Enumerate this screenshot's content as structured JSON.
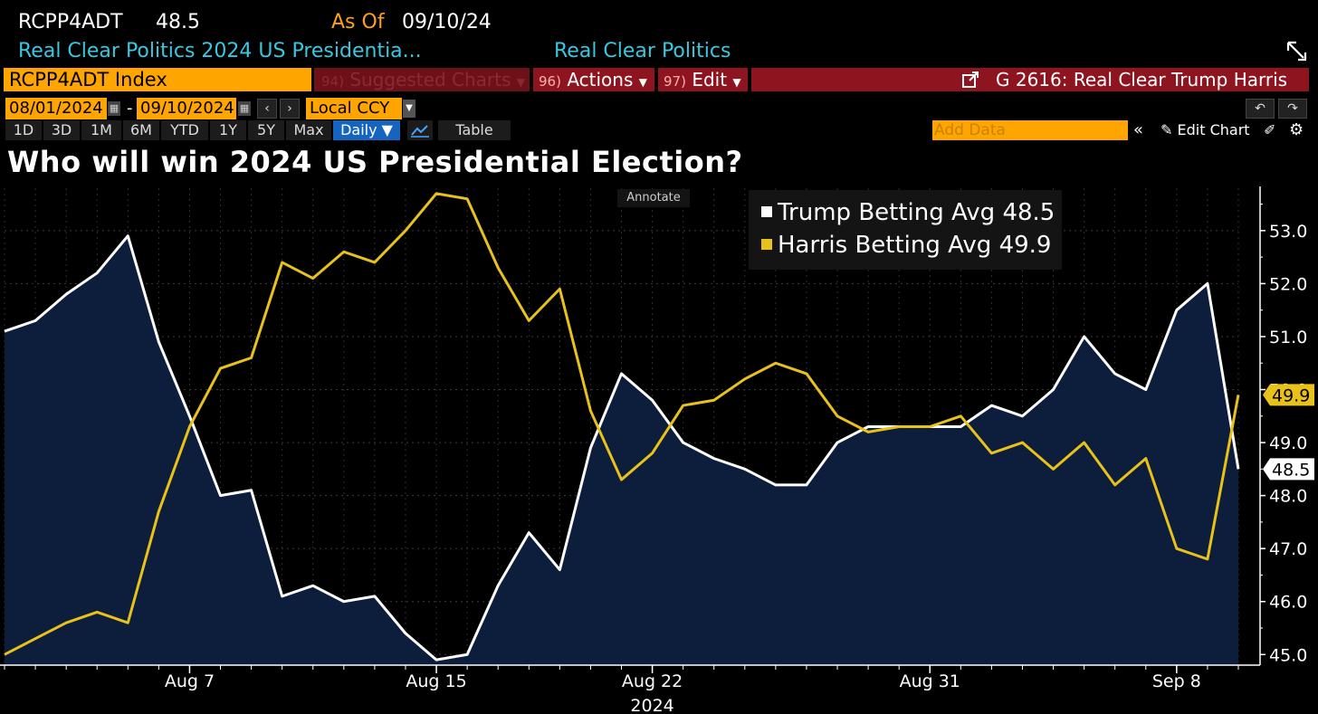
{
  "header": {
    "ticker": "RCPP4ADT",
    "ticker_value": "48.5",
    "as_of_label": "As Of",
    "as_of_date": "09/10/24",
    "subtitle": "Real Clear Politics 2024 US Presidentia...",
    "source": "Real Clear Politics"
  },
  "toolbar": {
    "index_name": "RCPP4ADT Index",
    "suggested_num": "94)",
    "suggested_label": "Suggested Charts",
    "actions_num": "96)",
    "actions_label": "Actions",
    "edit_num": "97)",
    "edit_label": "Edit",
    "chart_name": "G 2616: Real Clear Trump Harris"
  },
  "dates": {
    "start": "08/01/2024",
    "sep": "-",
    "end": "09/10/2024",
    "currency": "Local CCY"
  },
  "ranges": [
    "1D",
    "3D",
    "1M",
    "6M",
    "YTD",
    "1Y",
    "5Y",
    "Max"
  ],
  "period": "Daily ▼",
  "table_label": "Table",
  "add_data_placeholder": "Add Data",
  "edit_chart_label": "Edit Chart",
  "annotate_label": "Annotate",
  "colors": {
    "trump": "#ffffff",
    "harris": "#e8c21a",
    "area": "#0c1e3c",
    "orange": "#ffa500"
  },
  "chart_data": {
    "type": "line",
    "title": "Who will win 2024 US Presidential Election?",
    "xlabel": "2024",
    "ylim": [
      44.8,
      53.8
    ],
    "y_ticks": [
      "45.0",
      "46.0",
      "47.0",
      "48.0",
      "49.0",
      "50.0",
      "51.0",
      "52.0",
      "53.0"
    ],
    "x_tick_labels": [
      {
        "day": 7,
        "label": "Aug 7"
      },
      {
        "day": 15,
        "label": "Aug 15"
      },
      {
        "day": 22,
        "label": "Aug 22"
      },
      {
        "day": 31,
        "label": "Aug 31"
      },
      {
        "day": 39,
        "label": "Sep 8"
      }
    ],
    "x_days": [
      1,
      2,
      3,
      4,
      5,
      6,
      7,
      8,
      9,
      10,
      11,
      12,
      13,
      14,
      15,
      16,
      17,
      18,
      19,
      20,
      21,
      22,
      23,
      24,
      25,
      26,
      27,
      28,
      29,
      30,
      31,
      32,
      33,
      34,
      35,
      36,
      37,
      38,
      39,
      40,
      41
    ],
    "series": [
      {
        "name": "Trump Betting Avg",
        "last": "48.5",
        "values": [
          51.1,
          51.3,
          51.8,
          52.2,
          52.9,
          50.9,
          49.5,
          48.0,
          48.1,
          46.1,
          46.3,
          46.0,
          46.1,
          45.4,
          44.9,
          45.0,
          46.3,
          47.3,
          46.6,
          48.9,
          50.3,
          49.8,
          49.0,
          48.7,
          48.5,
          48.2,
          48.2,
          49.0,
          49.3,
          49.3,
          49.3,
          49.3,
          49.7,
          49.5,
          50.0,
          51.0,
          50.3,
          50.0,
          51.5,
          52.0,
          48.5
        ]
      },
      {
        "name": "Harris Betting Avg",
        "last": "49.9",
        "values": [
          45.0,
          45.3,
          45.6,
          45.8,
          45.6,
          47.7,
          49.3,
          50.4,
          50.6,
          52.4,
          52.1,
          52.6,
          52.4,
          53.0,
          53.7,
          53.6,
          52.3,
          51.3,
          51.9,
          49.6,
          48.3,
          48.8,
          49.7,
          49.8,
          50.2,
          50.5,
          50.3,
          49.5,
          49.2,
          49.3,
          49.3,
          49.5,
          48.8,
          49.0,
          48.5,
          49.0,
          48.2,
          48.7,
          47.0,
          46.8,
          49.9
        ]
      }
    ]
  }
}
